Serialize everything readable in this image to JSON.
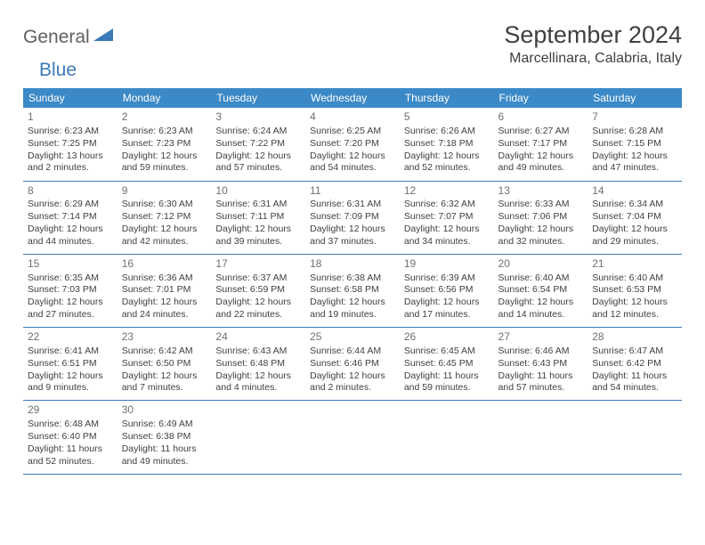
{
  "logo": {
    "part1": "General",
    "part2": "Blue"
  },
  "title": "September 2024",
  "location": "Marcellinara, Calabria, Italy",
  "colors": {
    "header_bg": "#3b89c7",
    "accent": "#3b7ab8",
    "text": "#404040",
    "daynum": "#707070"
  },
  "weekdays": [
    "Sunday",
    "Monday",
    "Tuesday",
    "Wednesday",
    "Thursday",
    "Friday",
    "Saturday"
  ],
  "days": [
    {
      "n": "1",
      "sr": "Sunrise: 6:23 AM",
      "ss": "Sunset: 7:25 PM",
      "dl": "Daylight: 13 hours and 2 minutes."
    },
    {
      "n": "2",
      "sr": "Sunrise: 6:23 AM",
      "ss": "Sunset: 7:23 PM",
      "dl": "Daylight: 12 hours and 59 minutes."
    },
    {
      "n": "3",
      "sr": "Sunrise: 6:24 AM",
      "ss": "Sunset: 7:22 PM",
      "dl": "Daylight: 12 hours and 57 minutes."
    },
    {
      "n": "4",
      "sr": "Sunrise: 6:25 AM",
      "ss": "Sunset: 7:20 PM",
      "dl": "Daylight: 12 hours and 54 minutes."
    },
    {
      "n": "5",
      "sr": "Sunrise: 6:26 AM",
      "ss": "Sunset: 7:18 PM",
      "dl": "Daylight: 12 hours and 52 minutes."
    },
    {
      "n": "6",
      "sr": "Sunrise: 6:27 AM",
      "ss": "Sunset: 7:17 PM",
      "dl": "Daylight: 12 hours and 49 minutes."
    },
    {
      "n": "7",
      "sr": "Sunrise: 6:28 AM",
      "ss": "Sunset: 7:15 PM",
      "dl": "Daylight: 12 hours and 47 minutes."
    },
    {
      "n": "8",
      "sr": "Sunrise: 6:29 AM",
      "ss": "Sunset: 7:14 PM",
      "dl": "Daylight: 12 hours and 44 minutes."
    },
    {
      "n": "9",
      "sr": "Sunrise: 6:30 AM",
      "ss": "Sunset: 7:12 PM",
      "dl": "Daylight: 12 hours and 42 minutes."
    },
    {
      "n": "10",
      "sr": "Sunrise: 6:31 AM",
      "ss": "Sunset: 7:11 PM",
      "dl": "Daylight: 12 hours and 39 minutes."
    },
    {
      "n": "11",
      "sr": "Sunrise: 6:31 AM",
      "ss": "Sunset: 7:09 PM",
      "dl": "Daylight: 12 hours and 37 minutes."
    },
    {
      "n": "12",
      "sr": "Sunrise: 6:32 AM",
      "ss": "Sunset: 7:07 PM",
      "dl": "Daylight: 12 hours and 34 minutes."
    },
    {
      "n": "13",
      "sr": "Sunrise: 6:33 AM",
      "ss": "Sunset: 7:06 PM",
      "dl": "Daylight: 12 hours and 32 minutes."
    },
    {
      "n": "14",
      "sr": "Sunrise: 6:34 AM",
      "ss": "Sunset: 7:04 PM",
      "dl": "Daylight: 12 hours and 29 minutes."
    },
    {
      "n": "15",
      "sr": "Sunrise: 6:35 AM",
      "ss": "Sunset: 7:03 PM",
      "dl": "Daylight: 12 hours and 27 minutes."
    },
    {
      "n": "16",
      "sr": "Sunrise: 6:36 AM",
      "ss": "Sunset: 7:01 PM",
      "dl": "Daylight: 12 hours and 24 minutes."
    },
    {
      "n": "17",
      "sr": "Sunrise: 6:37 AM",
      "ss": "Sunset: 6:59 PM",
      "dl": "Daylight: 12 hours and 22 minutes."
    },
    {
      "n": "18",
      "sr": "Sunrise: 6:38 AM",
      "ss": "Sunset: 6:58 PM",
      "dl": "Daylight: 12 hours and 19 minutes."
    },
    {
      "n": "19",
      "sr": "Sunrise: 6:39 AM",
      "ss": "Sunset: 6:56 PM",
      "dl": "Daylight: 12 hours and 17 minutes."
    },
    {
      "n": "20",
      "sr": "Sunrise: 6:40 AM",
      "ss": "Sunset: 6:54 PM",
      "dl": "Daylight: 12 hours and 14 minutes."
    },
    {
      "n": "21",
      "sr": "Sunrise: 6:40 AM",
      "ss": "Sunset: 6:53 PM",
      "dl": "Daylight: 12 hours and 12 minutes."
    },
    {
      "n": "22",
      "sr": "Sunrise: 6:41 AM",
      "ss": "Sunset: 6:51 PM",
      "dl": "Daylight: 12 hours and 9 minutes."
    },
    {
      "n": "23",
      "sr": "Sunrise: 6:42 AM",
      "ss": "Sunset: 6:50 PM",
      "dl": "Daylight: 12 hours and 7 minutes."
    },
    {
      "n": "24",
      "sr": "Sunrise: 6:43 AM",
      "ss": "Sunset: 6:48 PM",
      "dl": "Daylight: 12 hours and 4 minutes."
    },
    {
      "n": "25",
      "sr": "Sunrise: 6:44 AM",
      "ss": "Sunset: 6:46 PM",
      "dl": "Daylight: 12 hours and 2 minutes."
    },
    {
      "n": "26",
      "sr": "Sunrise: 6:45 AM",
      "ss": "Sunset: 6:45 PM",
      "dl": "Daylight: 11 hours and 59 minutes."
    },
    {
      "n": "27",
      "sr": "Sunrise: 6:46 AM",
      "ss": "Sunset: 6:43 PM",
      "dl": "Daylight: 11 hours and 57 minutes."
    },
    {
      "n": "28",
      "sr": "Sunrise: 6:47 AM",
      "ss": "Sunset: 6:42 PM",
      "dl": "Daylight: 11 hours and 54 minutes."
    },
    {
      "n": "29",
      "sr": "Sunrise: 6:48 AM",
      "ss": "Sunset: 6:40 PM",
      "dl": "Daylight: 11 hours and 52 minutes."
    },
    {
      "n": "30",
      "sr": "Sunrise: 6:49 AM",
      "ss": "Sunset: 6:38 PM",
      "dl": "Daylight: 11 hours and 49 minutes."
    }
  ]
}
